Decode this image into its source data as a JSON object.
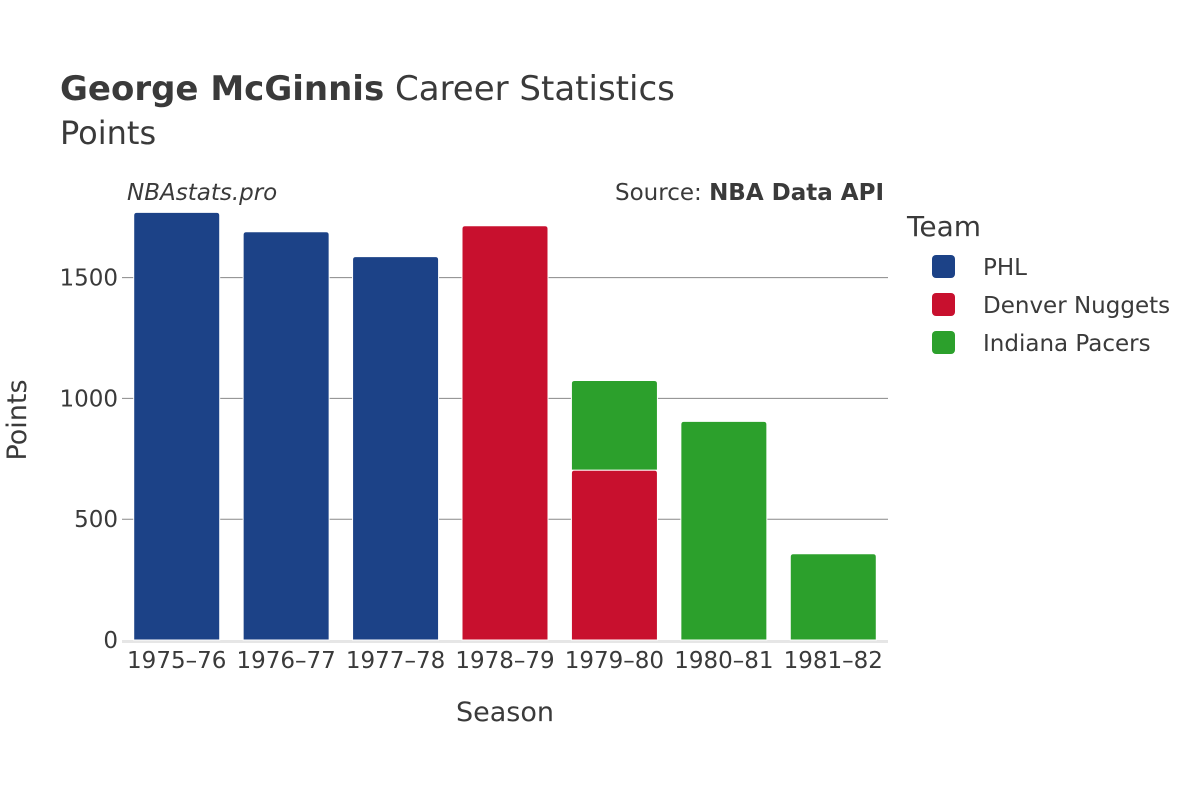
{
  "title": {
    "player": "George McGinnis",
    "suffix": " Career Statistics",
    "subtitle": "Points"
  },
  "watermark": "NBAstats.pro",
  "source": {
    "prefix": "Source: ",
    "name": "NBA Data API"
  },
  "legend": {
    "title": "Team"
  },
  "colors": {
    "PHL": "#1c4287",
    "Denver Nuggets": "#c8102e",
    "Indiana Pacers": "#2ca02c",
    "grid": "#888888",
    "text": "#3a3a3a"
  },
  "chart_data": {
    "type": "bar",
    "stacked": true,
    "title": "George McGinnis Career Statistics",
    "subtitle": "Points",
    "xlabel": "Season",
    "ylabel": "Points",
    "categories": [
      "1975–76",
      "1976–77",
      "1977–78",
      "1978–79",
      "1979–80",
      "1980–81",
      "1981–82"
    ],
    "ylim": [
      0,
      1780
    ],
    "yticks": [
      0,
      500,
      1000,
      1500
    ],
    "grid": true,
    "legend_position": "right",
    "series": [
      {
        "name": "PHL",
        "values": [
          1770,
          1690,
          1587,
          0,
          0,
          0,
          0
        ]
      },
      {
        "name": "Denver Nuggets",
        "values": [
          0,
          0,
          0,
          1715,
          703,
          0,
          0
        ]
      },
      {
        "name": "Indiana Pacers",
        "values": [
          0,
          0,
          0,
          0,
          371,
          905,
          357
        ]
      }
    ]
  }
}
